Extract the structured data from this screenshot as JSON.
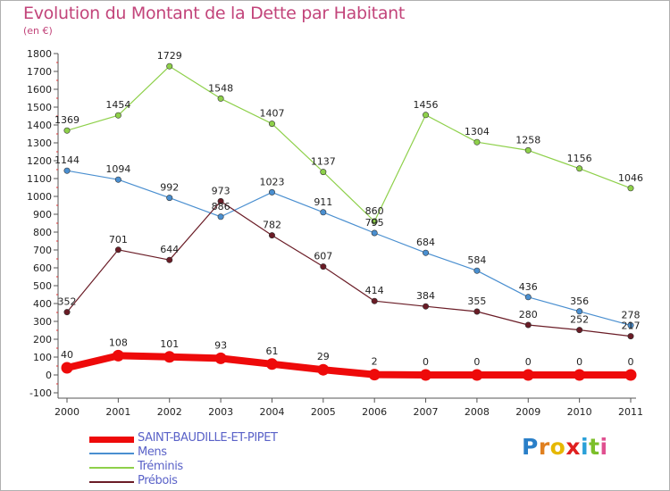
{
  "title": "Evolution du Montant de la Dette par Habitant",
  "unit_label": "(en €)",
  "logo": {
    "letters": [
      "P",
      "r",
      "o",
      "x",
      "i",
      "t",
      "i"
    ],
    "colors": [
      "#2a7fc8",
      "#e08020",
      "#e6b800",
      "#e02020",
      "#2aa0d8",
      "#7cbf2a",
      "#e05090"
    ]
  },
  "chart_data": {
    "type": "line",
    "title": "Evolution du Montant de la Dette par Habitant",
    "ylabel": "(en €)",
    "xlabel": "",
    "ylim": [
      -100,
      1800
    ],
    "yticks": [
      -100,
      0,
      100,
      200,
      300,
      400,
      500,
      600,
      700,
      800,
      900,
      1000,
      1100,
      1200,
      1300,
      1400,
      1500,
      1600,
      1700,
      1800
    ],
    "grid": false,
    "legend_position": "bottom-left",
    "x": [
      "2000",
      "2001",
      "2002",
      "2003",
      "2004",
      "2005",
      "2006",
      "2007",
      "2008",
      "2009",
      "2010",
      "2011"
    ],
    "series": [
      {
        "name": "Tréminis",
        "color": "#8ed04a",
        "values": [
          1369,
          1454,
          1729,
          1548,
          1407,
          1137,
          860,
          1456,
          1304,
          1258,
          1156,
          1046
        ]
      },
      {
        "name": "Mens",
        "color": "#4a8fd0",
        "values": [
          1144,
          1094,
          992,
          886,
          1023,
          911,
          795,
          684,
          584,
          436,
          356,
          278
        ]
      },
      {
        "name": "Prébois",
        "color": "#6a1c26",
        "values": [
          352,
          701,
          644,
          973,
          782,
          607,
          414,
          384,
          355,
          280,
          252,
          217
        ]
      },
      {
        "name": "SAINT-BAUDILLE-ET-PIPET",
        "color": "#ee0a0a",
        "values": [
          40,
          108,
          101,
          93,
          61,
          29,
          2,
          0,
          0,
          0,
          0,
          0
        ]
      }
    ]
  }
}
